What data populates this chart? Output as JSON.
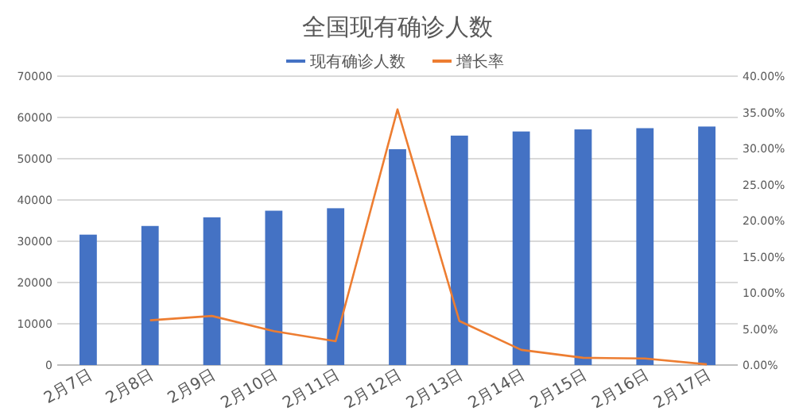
{
  "chart_data": {
    "type": "bar",
    "title": "全国现有确诊人数",
    "categories": [
      "2月7日",
      "2月8日",
      "2月9日",
      "2月10日",
      "2月11日",
      "2月12日",
      "2月13日",
      "2月14日",
      "2月15日",
      "2月16日",
      "2月17日"
    ],
    "series": [
      {
        "name": "现有确诊人数",
        "color": "#4472c4",
        "values": [
          31600,
          33700,
          35800,
          37400,
          38000,
          52300,
          55600,
          56600,
          57100,
          57400,
          57800
        ]
      },
      {
        "name": "增长率",
        "type": "line",
        "axis": "y2",
        "color": "#ed7d31",
        "values": [
          null,
          6.2,
          6.8,
          4.7,
          3.3,
          35.4,
          6.1,
          2.1,
          1.0,
          0.9,
          0.1
        ]
      }
    ],
    "ylim": [
      0,
      70000
    ],
    "yticks": [
      0,
      10000,
      20000,
      30000,
      40000,
      50000,
      60000,
      70000
    ],
    "y2lim": [
      0,
      40
    ],
    "y2ticks": [
      {
        "value": 0,
        "label": "0.00%"
      },
      {
        "value": 5,
        "label": "5.00%"
      },
      {
        "value": 10,
        "label": "10.00%"
      },
      {
        "value": 15,
        "label": "15.00%"
      },
      {
        "value": 20,
        "label": "20.00%"
      },
      {
        "value": 25,
        "label": "25.00%"
      },
      {
        "value": 30,
        "label": "30.00%"
      },
      {
        "value": 35,
        "label": "35.00%"
      },
      {
        "value": 40,
        "label": "40.00%"
      }
    ],
    "grid": "y",
    "legend": "top",
    "marker": "none",
    "line_style": "solid"
  }
}
